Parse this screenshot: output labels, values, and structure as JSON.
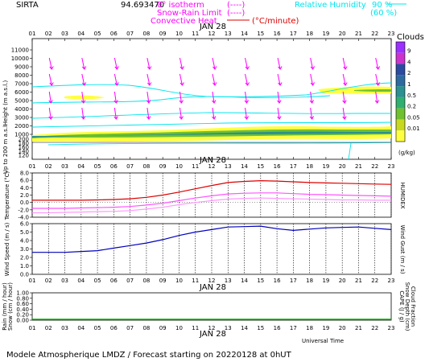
{
  "header": {
    "site": "SIRTA",
    "coords": "94.693470",
    "legend_isotherm": "0° isotherm",
    "legend_isotherm_marker": "(----)",
    "legend_snow": "Snow-Rain Limit",
    "legend_snow_marker": "(----)",
    "legend_convective": "Convective Heat",
    "legend_convective_unit": "(°C/minute)",
    "legend_rh": "Relative Humidity",
    "legend_rh_90": "90 %",
    "legend_rh_60": "(60 %)"
  },
  "footer": {
    "universal_time": "Universal Time",
    "model": "Modele Atmospherique LMDZ / Forecast starting on 20220128 at 0hUT"
  },
  "colors": {
    "magenta": "#ff00ff",
    "cyan": "#00e5ee",
    "red": "#dd0000",
    "blue": "#0000bb",
    "green_rain": "#00aa00"
  },
  "chart_data": [
    {
      "type": "heatmap",
      "title": "Clouds",
      "date_label": "JAN 28",
      "ylabel": "Height (m a.s.l.)",
      "ylabel_low": "Up to 200 m a.s.l.",
      "hours": [
        "01",
        "02",
        "03",
        "04",
        "05",
        "06",
        "07",
        "08",
        "09",
        "10",
        "11",
        "12",
        "13",
        "14",
        "15",
        "16",
        "17",
        "18",
        "19",
        "20",
        "21",
        "22",
        "23"
      ],
      "yticks_upper": [
        11000,
        10000,
        9000,
        8000,
        7000,
        6000,
        5000,
        4000,
        3000,
        2000,
        1000
      ],
      "yticks_lower": [
        200,
        180,
        160,
        140,
        120
      ],
      "colorbar_label": "(g/kg)",
      "colorbar_ticks": [
        "9",
        "4",
        "2",
        "1",
        "0.5",
        "0.2",
        "0.05",
        "0.01"
      ],
      "colorbar_colors": [
        "#9b30ff",
        "#cc33cc",
        "#2b4aa0",
        "#2e6aa0",
        "#2a9090",
        "#30b070",
        "#70c030",
        "#c8d820",
        "#ffff40"
      ]
    },
    {
      "type": "line",
      "ylabel": "Temperature (°C)",
      "ylabel_right": "HUMIDEX",
      "date_label": "JAN 28",
      "yticks": [
        8.0,
        6.0,
        4.0,
        2.0,
        0.0,
        -2.0,
        -4.0
      ],
      "ylim": [
        -4.0,
        8.0
      ],
      "x": [
        "01",
        "02",
        "03",
        "04",
        "05",
        "06",
        "07",
        "08",
        "09",
        "10",
        "11",
        "12",
        "13",
        "14",
        "15",
        "16",
        "17",
        "18",
        "19",
        "20",
        "21",
        "22",
        "23"
      ],
      "series": [
        {
          "color": "#dd0000",
          "values": [
            0.6,
            0.6,
            0.6,
            0.6,
            0.7,
            0.8,
            1.0,
            1.4,
            2.0,
            2.8,
            3.7,
            4.6,
            5.4,
            5.7,
            5.9,
            5.8,
            5.6,
            5.4,
            5.3,
            5.2,
            5.1,
            5.0,
            4.9
          ]
        },
        {
          "color": "#ff55ff",
          "values": [
            -1.6,
            -1.6,
            -1.6,
            -1.5,
            -1.4,
            -1.3,
            -1.1,
            -0.7,
            -0.2,
            0.5,
            1.2,
            1.8,
            2.3,
            2.5,
            2.6,
            2.6,
            2.4,
            2.2,
            2.1,
            2.0,
            1.9,
            1.8,
            1.7
          ]
        },
        {
          "color": "#ff99ff",
          "values": [
            -2.8,
            -2.8,
            -2.7,
            -2.6,
            -2.5,
            -2.4,
            -2.2,
            -1.8,
            -1.3,
            -0.6,
            0.0,
            0.5,
            0.9,
            1.1,
            1.2,
            1.1,
            1.0,
            0.9,
            0.8,
            0.7,
            0.7,
            0.6,
            0.6
          ]
        }
      ]
    },
    {
      "type": "line",
      "ylabel": "Wind Speed (m / s)",
      "ylabel_right": "Wind Gust (m / s)",
      "date_label": "JAN 28",
      "yticks": [
        6.0,
        5.0,
        4.0,
        3.0,
        2.0,
        1.0,
        0.0
      ],
      "ylim": [
        0.0,
        6.0
      ],
      "x": [
        "01",
        "02",
        "03",
        "04",
        "05",
        "06",
        "07",
        "08",
        "09",
        "10",
        "11",
        "12",
        "13",
        "14",
        "15",
        "16",
        "17",
        "18",
        "19",
        "20",
        "21",
        "22",
        "23"
      ],
      "series": [
        {
          "color": "#0000bb",
          "values": [
            2.6,
            2.6,
            2.6,
            2.7,
            2.8,
            3.1,
            3.4,
            3.7,
            4.1,
            4.6,
            5.0,
            5.3,
            5.6,
            5.65,
            5.7,
            5.4,
            5.2,
            5.35,
            5.5,
            5.55,
            5.6,
            5.45,
            5.3
          ]
        }
      ]
    },
    {
      "type": "bar",
      "ylabel": "Rain (mm / hour)",
      "ylabel2": "Snow (cm / hour)",
      "ylabel_right": "CAPE (J / g)",
      "ylabel_right2": "Snow Depth (cm)",
      "ylabel_right3": "Cloud Fraction",
      "date_label": "JAN 28",
      "yticks": [
        1.0,
        0.8,
        0.6,
        0.4,
        0.2,
        0.0
      ],
      "ylim": [
        0.0,
        1.0
      ],
      "x": [
        "01",
        "02",
        "03",
        "04",
        "05",
        "06",
        "07",
        "08",
        "09",
        "10",
        "11",
        "12",
        "13",
        "14",
        "15",
        "16",
        "17",
        "18",
        "19",
        "20",
        "21",
        "22",
        "23"
      ],
      "values": [
        0,
        0,
        0,
        0,
        0,
        0,
        0,
        0,
        0,
        0,
        0,
        0,
        0,
        0,
        0,
        0,
        0,
        0,
        0,
        0,
        0,
        0,
        0
      ]
    }
  ]
}
